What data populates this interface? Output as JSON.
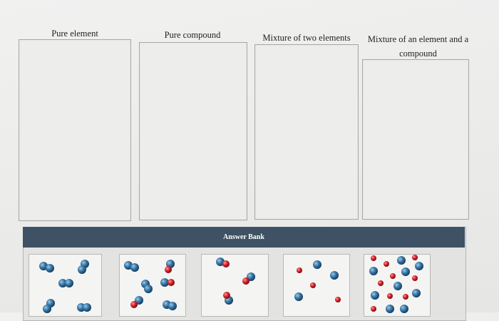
{
  "categories": [
    {
      "label": "Pure element"
    },
    {
      "label": "Pure compound"
    },
    {
      "label": "Mixture of two elements"
    },
    {
      "label": "Mixture of an element and a compound"
    }
  ],
  "answer_bank": {
    "title": "Answer Bank",
    "tiles": [
      {
        "contents": "blue diatomic molecules"
      },
      {
        "contents": "blue diatomic and blue-red molecules"
      },
      {
        "contents": "blue-red molecules"
      },
      {
        "contents": "single red and single blue atoms"
      },
      {
        "contents": "many red and blue single atoms"
      }
    ]
  },
  "colors": {
    "blue_atom": "#3b78a8",
    "red_atom": "#d8242a",
    "header_bg": "#3e5165"
  }
}
